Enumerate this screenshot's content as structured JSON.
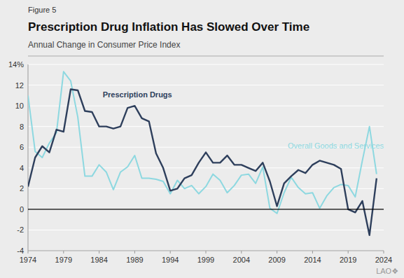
{
  "chart_data": {
    "type": "line",
    "figure_label": "Figure 5",
    "title": "Prescription Drug Inflation Has Slowed Over Time",
    "subtitle": "Annual Change in Consumer Price Index",
    "watermark": "LAO❖",
    "x": [
      1974,
      1975,
      1976,
      1977,
      1978,
      1979,
      1980,
      1981,
      1982,
      1983,
      1984,
      1985,
      1986,
      1987,
      1988,
      1989,
      1990,
      1991,
      1992,
      1993,
      1994,
      1995,
      1996,
      1997,
      1998,
      1999,
      2000,
      2001,
      2002,
      2003,
      2004,
      2005,
      2006,
      2007,
      2008,
      2009,
      2010,
      2011,
      2012,
      2013,
      2014,
      2015,
      2016,
      2017,
      2018,
      2019,
      2020,
      2021,
      2022,
      2023
    ],
    "series": [
      {
        "color": "#8dd8e0",
        "values": [
          11.0,
          5.6,
          5.0,
          6.4,
          7.4,
          13.3,
          12.4,
          8.9,
          3.2,
          3.2,
          4.3,
          3.6,
          1.9,
          3.6,
          4.1,
          5.2,
          3.0,
          3.0,
          2.9,
          2.7,
          1.5,
          2.8,
          2.0,
          2.3,
          1.5,
          2.2,
          3.4,
          2.8,
          1.6,
          2.3,
          3.3,
          3.4,
          2.5,
          4.1,
          0.1,
          -0.4,
          1.6,
          3.1,
          2.1,
          1.5,
          1.6,
          0.1,
          1.3,
          2.1,
          2.4,
          2.3,
          1.2,
          4.7,
          8.0,
          3.4
        ]
      },
      {
        "color": "#2e3f5c",
        "values": [
          2.2,
          5.0,
          6.1,
          5.5,
          7.7,
          7.5,
          11.6,
          11.5,
          9.5,
          9.4,
          8.0,
          8.0,
          7.8,
          8.0,
          9.8,
          10.0,
          8.8,
          8.5,
          5.4,
          4.0,
          1.8,
          2.0,
          3.0,
          3.3,
          4.5,
          5.5,
          4.5,
          4.5,
          5.2,
          4.3,
          4.3,
          4.0,
          3.7,
          4.5,
          2.7,
          0.3,
          2.5,
          3.2,
          3.8,
          3.5,
          4.3,
          4.7,
          4.5,
          4.3,
          3.9,
          0.0,
          -0.3,
          0.8,
          -2.5,
          3.0
        ]
      }
    ],
    "annotations": [
      {
        "text": "Prescription Drugs",
        "x": 1984.5,
        "y": 10.6,
        "color": "#2e3f5c"
      },
      {
        "text": "Overall Goods and Services",
        "x": 2014.5,
        "y": 5.7,
        "color": "#8dd8e0"
      }
    ],
    "xlim": [
      1974,
      2024
    ],
    "xticks": [
      1974,
      1979,
      1984,
      1989,
      1994,
      1999,
      2004,
      2009,
      2014,
      2019,
      2024
    ],
    "ylim": [
      -4,
      14
    ],
    "yticks": [
      -4,
      -2,
      0,
      2,
      4,
      6,
      8,
      10,
      12,
      {
        "value": 14,
        "label": "14%"
      }
    ],
    "grid": true
  }
}
